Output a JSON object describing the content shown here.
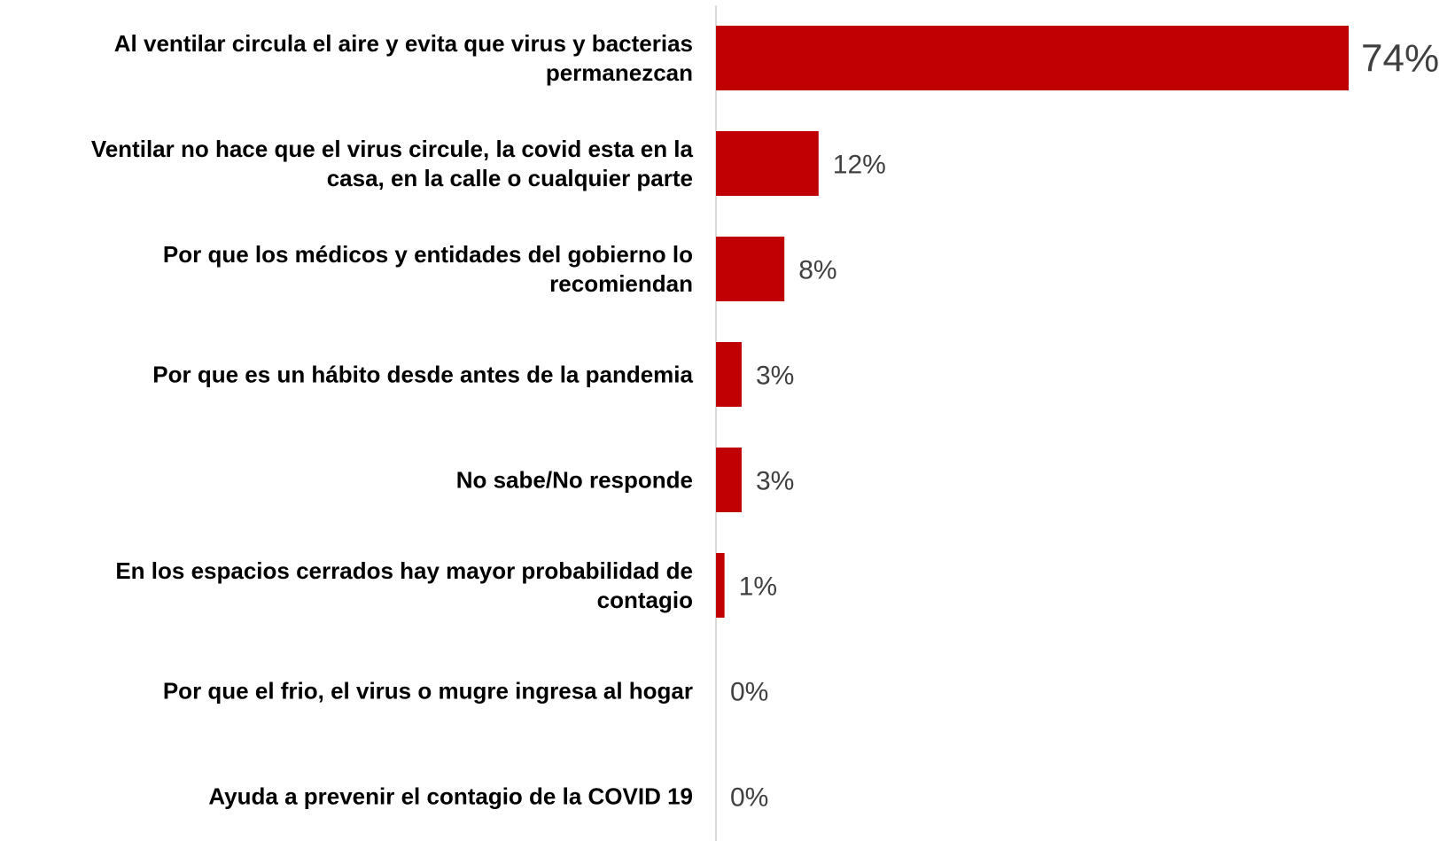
{
  "chart_data": {
    "type": "bar",
    "orientation": "horizontal",
    "categories": [
      [
        "Al ventilar circula el aire y evita que virus y bacterias",
        "permanezcan"
      ],
      [
        "Ventilar no hace que el virus circule, la covid esta en la",
        "casa, en la calle o cualquier parte"
      ],
      [
        "Por que los médicos y entidades del gobierno lo",
        "recomiendan"
      ],
      [
        "Por que es un hábito desde antes de la pandemia"
      ],
      [
        "No sabe/No responde"
      ],
      [
        "En los espacios cerrados hay mayor probabilidad de",
        "contagio"
      ],
      [
        "Por que el frio, el virus o mugre ingresa al hogar"
      ],
      [
        "Ayuda a prevenir el contagio de la COVID 19"
      ]
    ],
    "values": [
      74,
      12,
      8,
      3,
      3,
      1,
      0,
      0
    ],
    "value_labels": [
      "74%",
      "12%",
      "8%",
      "3%",
      "3%",
      "1%",
      "0%",
      "0%"
    ],
    "xlim": [
      0,
      74
    ],
    "grid": false,
    "legend": "none",
    "colors": {
      "bar": "#C00000",
      "axis": "#D9D9D9",
      "value_text": "#404040",
      "label_text": "#000000"
    }
  }
}
